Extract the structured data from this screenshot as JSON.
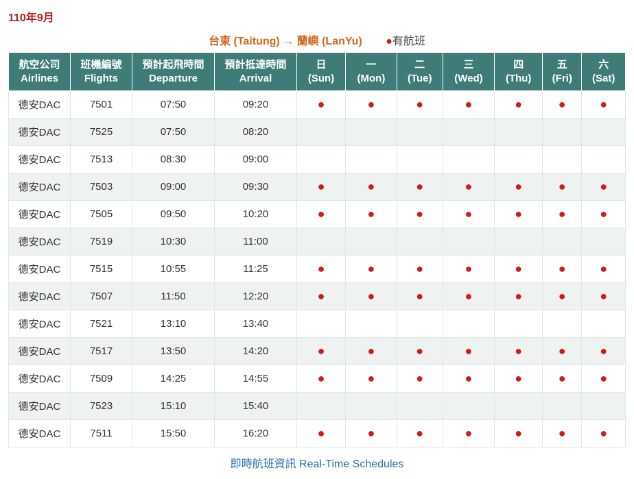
{
  "page": {
    "title": "110年9月"
  },
  "route": {
    "from": "台東 (Taitung)",
    "arrow": "→",
    "to": "蘭嶼 (LanYu)"
  },
  "legend": {
    "dot": "●",
    "text": "有航班"
  },
  "headers": {
    "airline": {
      "zh": "航空公司",
      "en": "Airlines"
    },
    "flight": {
      "zh": "班機編號",
      "en": "Flights"
    },
    "dep": {
      "zh": "預計起飛時間",
      "en": "Departure"
    },
    "arr": {
      "zh": "預計抵達時間",
      "en": "Arrival"
    },
    "days": [
      {
        "zh": "日",
        "en": "(Sun)"
      },
      {
        "zh": "一",
        "en": "(Mon)"
      },
      {
        "zh": "二",
        "en": "(Tue)"
      },
      {
        "zh": "三",
        "en": "(Wed)"
      },
      {
        "zh": "四",
        "en": "(Thu)"
      },
      {
        "zh": "五",
        "en": "(Fri)"
      },
      {
        "zh": "六",
        "en": "(Sat)"
      }
    ]
  },
  "airlineLabel": "德安DAC",
  "rows": [
    {
      "flight": "7501",
      "dep": "07:50",
      "arr": "09:20",
      "days": [
        1,
        1,
        1,
        1,
        1,
        1,
        1
      ]
    },
    {
      "flight": "7525",
      "dep": "07:50",
      "arr": "08:20",
      "days": [
        0,
        0,
        0,
        0,
        0,
        0,
        0
      ]
    },
    {
      "flight": "7513",
      "dep": "08:30",
      "arr": "09:00",
      "days": [
        0,
        0,
        0,
        0,
        0,
        0,
        0
      ]
    },
    {
      "flight": "7503",
      "dep": "09:00",
      "arr": "09:30",
      "days": [
        1,
        1,
        1,
        1,
        1,
        1,
        1
      ]
    },
    {
      "flight": "7505",
      "dep": "09:50",
      "arr": "10:20",
      "days": [
        1,
        1,
        1,
        1,
        1,
        1,
        1
      ]
    },
    {
      "flight": "7519",
      "dep": "10:30",
      "arr": "11:00",
      "days": [
        0,
        0,
        0,
        0,
        0,
        0,
        0
      ]
    },
    {
      "flight": "7515",
      "dep": "10:55",
      "arr": "11:25",
      "days": [
        1,
        1,
        1,
        1,
        1,
        1,
        1
      ]
    },
    {
      "flight": "7507",
      "dep": "11:50",
      "arr": "12:20",
      "days": [
        1,
        1,
        1,
        1,
        1,
        1,
        1
      ]
    },
    {
      "flight": "7521",
      "dep": "13:10",
      "arr": "13:40",
      "days": [
        0,
        0,
        0,
        0,
        0,
        0,
        0
      ]
    },
    {
      "flight": "7517",
      "dep": "13:50",
      "arr": "14:20",
      "days": [
        1,
        1,
        1,
        1,
        1,
        1,
        1
      ]
    },
    {
      "flight": "7509",
      "dep": "14:25",
      "arr": "14:55",
      "days": [
        1,
        1,
        1,
        1,
        1,
        1,
        1
      ]
    },
    {
      "flight": "7523",
      "dep": "15:10",
      "arr": "15:40",
      "days": [
        0,
        0,
        0,
        0,
        0,
        0,
        0
      ]
    },
    {
      "flight": "7511",
      "dep": "15:50",
      "arr": "16:20",
      "days": [
        1,
        1,
        1,
        1,
        1,
        1,
        1
      ]
    }
  ],
  "footer": {
    "text": "即時航班資訊 Real-Time Schedules"
  },
  "style": {
    "header_bg": "#3f7c78",
    "header_fg": "#ffffff",
    "row_alt_bg": "#eef3f2",
    "row_bg": "#ffffff",
    "border_color": "#dfe6e5",
    "title_color": "#b22222",
    "route_color": "#d2691e",
    "dot_color": "#d11a1a",
    "link_color": "#2a6fb5"
  }
}
